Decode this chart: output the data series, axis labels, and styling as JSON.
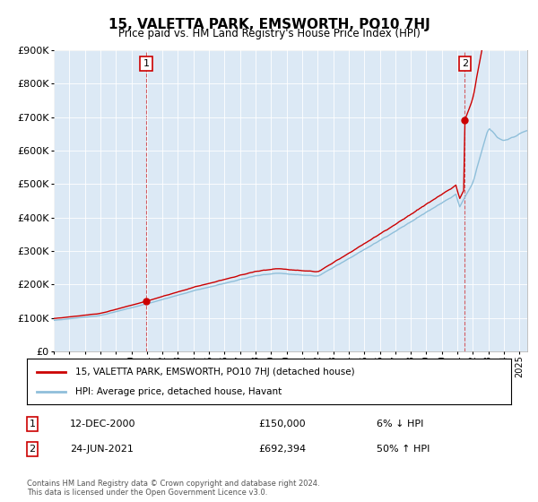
{
  "title": "15, VALETTA PARK, EMSWORTH, PO10 7HJ",
  "subtitle": "Price paid vs. HM Land Registry's House Price Index (HPI)",
  "ylim": [
    0,
    900000
  ],
  "yticks": [
    0,
    100000,
    200000,
    300000,
    400000,
    500000,
    600000,
    700000,
    800000,
    900000
  ],
  "hpi_color": "#8fbfda",
  "price_color": "#cc0000",
  "background_color": "#dce9f5",
  "sale1_year": 2000.95,
  "sale1_price": 150000,
  "sale2_year": 2021.48,
  "sale2_price": 692394,
  "legend_entries": [
    "15, VALETTA PARK, EMSWORTH, PO10 7HJ (detached house)",
    "HPI: Average price, detached house, Havant"
  ],
  "ann1": [
    "1",
    "12-DEC-2000",
    "£150,000",
    "6% ↓ HPI"
  ],
  "ann2": [
    "2",
    "24-JUN-2021",
    "£692,394",
    "50% ↑ HPI"
  ],
  "footer": "Contains HM Land Registry data © Crown copyright and database right 2024.\nThis data is licensed under the Open Government Licence v3.0.",
  "xlim_start": 1995,
  "xlim_end": 2025.5
}
